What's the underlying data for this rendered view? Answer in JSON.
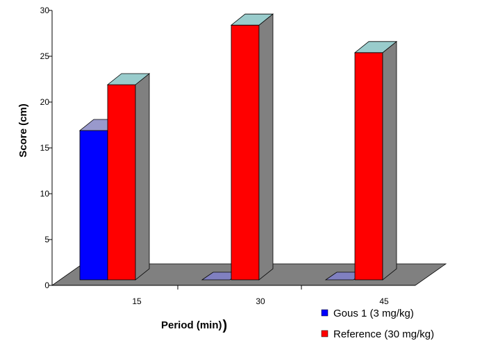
{
  "chart_data": {
    "type": "bar",
    "style": "3d-column",
    "categories": [
      "15",
      "30",
      "45"
    ],
    "series": [
      {
        "name": "Gous 1 (3 mg/kg)",
        "values": [
          17.5,
          0,
          0
        ],
        "color": "#0000ff"
      },
      {
        "name": "Reference (30 mg/kg)",
        "values": [
          22.5,
          29,
          26
        ],
        "color": "#ff0000"
      }
    ],
    "xlabel": "Period (min)",
    "xlabel_paren": ")",
    "ylabel": "Score (cm)",
    "ylim": [
      0,
      30
    ],
    "yticks": [
      "0",
      "5",
      "10",
      "15",
      "20",
      "25",
      "30"
    ],
    "grid": false,
    "legend_position": "bottom-right",
    "floor_color": "#808080",
    "colors": {
      "blue_side": "#000080",
      "blue_top": "#9999cc",
      "red_side": "#808080",
      "red_top": "#99cccc",
      "zero_blue": "#8080c0",
      "zero_red": "#c0c0a0"
    }
  }
}
